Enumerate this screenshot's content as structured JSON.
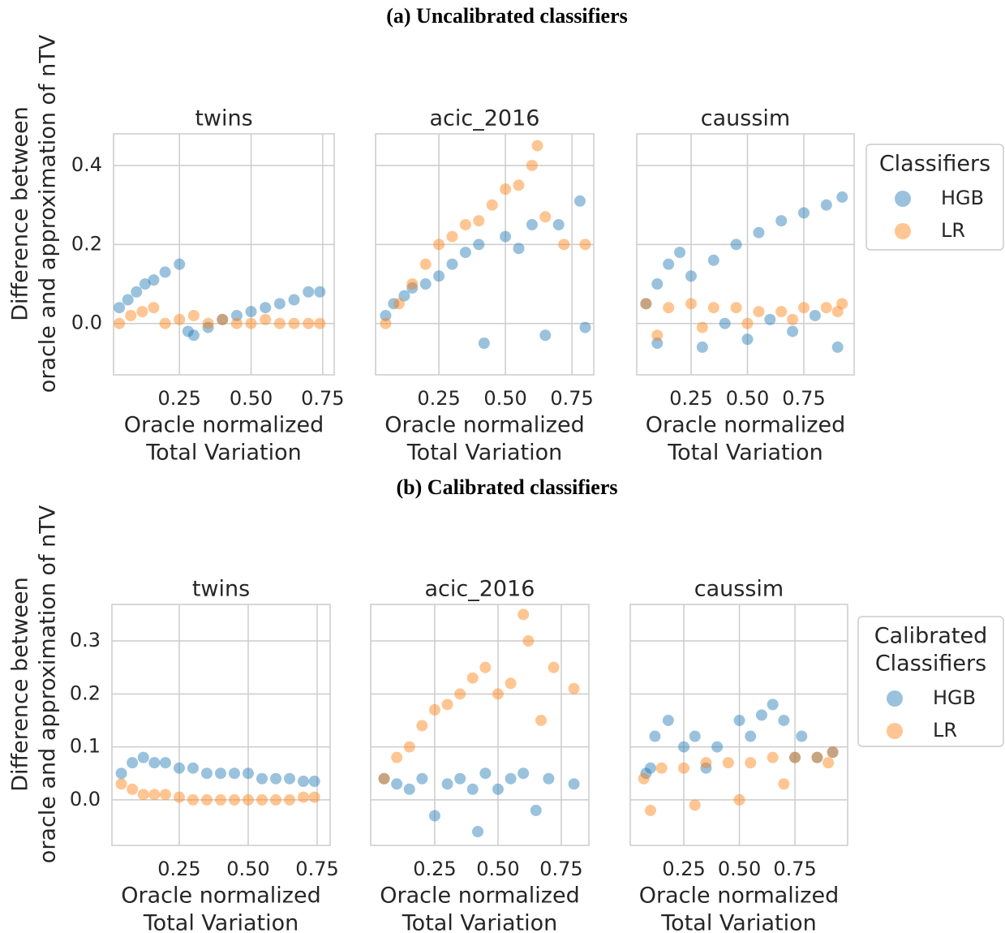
{
  "chart_data": [
    {
      "type": "scatter",
      "figure_title": "(a) Uncalibrated classifiers",
      "ylabel": [
        "Difference between",
        "oracle and approximation of nTV"
      ],
      "legend_title": [
        "Classifiers"
      ],
      "title": "twins",
      "xlabel": [
        "Oracle normalized",
        "Total Variation"
      ],
      "xlim": [
        0.02,
        0.79
      ],
      "xticks": [
        0.25,
        {
          "value": 0.5,
          "label": "0.50"
        },
        0.75
      ],
      "ylim": [
        -0.13,
        0.48
      ],
      "yticks": [
        {
          "value": 0,
          "label": "0.0"
        },
        0.2,
        0.4
      ],
      "grid": true,
      "series": [
        {
          "name": "HGB",
          "color": "#1f77b4",
          "x": [
            0.04,
            0.07,
            0.1,
            0.13,
            0.16,
            0.2,
            0.25,
            0.28,
            0.3,
            0.35,
            0.4,
            0.45,
            0.5,
            0.55,
            0.6,
            0.65,
            0.7,
            0.74
          ],
          "values": [
            0.04,
            0.06,
            0.08,
            0.1,
            0.11,
            0.13,
            0.15,
            -0.02,
            -0.03,
            -0.01,
            0.01,
            0.02,
            0.03,
            0.04,
            0.05,
            0.06,
            0.08,
            0.08
          ]
        },
        {
          "name": "LR",
          "color": "#ff7f0e",
          "x": [
            0.04,
            0.08,
            0.12,
            0.16,
            0.2,
            0.25,
            0.3,
            0.35,
            0.4,
            0.45,
            0.5,
            0.55,
            0.6,
            0.65,
            0.7,
            0.74
          ],
          "values": [
            0,
            0.02,
            0.03,
            0.04,
            0,
            0.01,
            0.02,
            0,
            0.01,
            0,
            0,
            0.01,
            0,
            0,
            0,
            0
          ]
        }
      ]
    },
    {
      "type": "scatter",
      "title": "acic_2016",
      "xlabel": [
        "Oracle normalized",
        "Total Variation"
      ],
      "xlim": [
        0.012,
        0.832
      ],
      "xticks": [
        0.25,
        {
          "value": 0.5,
          "label": "0.50"
        },
        0.75
      ],
      "ylim": [
        -0.13,
        0.48
      ],
      "yticks": [
        {
          "value": 0,
          "label": "0.0"
        },
        0.2,
        0.4
      ],
      "grid": true,
      "series": [
        {
          "color": "#1f77b4",
          "x": [
            0.05,
            0.08,
            0.12,
            0.15,
            0.2,
            0.25,
            0.3,
            0.35,
            0.4,
            0.42,
            0.5,
            0.55,
            0.6,
            0.65,
            0.7,
            0.78,
            0.8
          ],
          "values": [
            0.02,
            0.05,
            0.07,
            0.09,
            0.1,
            0.12,
            0.15,
            0.18,
            0.2,
            -0.05,
            0.22,
            0.19,
            0.25,
            -0.03,
            0.25,
            0.31,
            -0.01
          ]
        },
        {
          "color": "#ff7f0e",
          "x": [
            0.05,
            0.1,
            0.15,
            0.2,
            0.25,
            0.3,
            0.35,
            0.4,
            0.45,
            0.5,
            0.55,
            0.6,
            0.62,
            0.65,
            0.72,
            0.8
          ],
          "values": [
            0,
            0.05,
            0.1,
            0.15,
            0.2,
            0.22,
            0.25,
            0.26,
            0.3,
            0.34,
            0.35,
            0.4,
            0.45,
            0.27,
            0.2,
            0.2
          ]
        }
      ]
    },
    {
      "type": "scatter",
      "title": "caussim",
      "xlabel": [
        "Oracle normalized",
        "Total Variation"
      ],
      "xlim": [
        0.009,
        0.973
      ],
      "xticks": [
        0.25,
        {
          "value": 0.5,
          "label": "0.50"
        },
        0.75
      ],
      "ylim": [
        -0.13,
        0.48
      ],
      "yticks": [
        {
          "value": 0,
          "label": "0.0"
        },
        0.2,
        0.4
      ],
      "grid": true,
      "series": [
        {
          "color": "#1f77b4",
          "x": [
            0.05,
            0.1,
            0.15,
            0.2,
            0.25,
            0.35,
            0.45,
            0.55,
            0.65,
            0.75,
            0.85,
            0.92,
            0.1,
            0.3,
            0.5,
            0.7,
            0.9,
            0.4,
            0.6,
            0.8
          ],
          "values": [
            0.05,
            0.1,
            0.15,
            0.18,
            0.12,
            0.16,
            0.2,
            0.23,
            0.26,
            0.28,
            0.3,
            0.32,
            -0.05,
            -0.06,
            -0.04,
            -0.02,
            -0.06,
            0,
            0.01,
            0.02
          ]
        },
        {
          "color": "#ff7f0e",
          "x": [
            0.05,
            0.15,
            0.25,
            0.35,
            0.45,
            0.55,
            0.65,
            0.75,
            0.85,
            0.92,
            0.1,
            0.3,
            0.5,
            0.7,
            0.9
          ],
          "values": [
            0.05,
            0.04,
            0.05,
            0.04,
            0.04,
            0.03,
            0.03,
            0.04,
            0.04,
            0.05,
            -0.03,
            -0.01,
            0,
            0.01,
            0.03
          ]
        }
      ]
    },
    {
      "type": "scatter",
      "figure_title": "(b) Calibrated classifiers",
      "ylabel": [
        "Difference between",
        "oracle and approximation of nTV"
      ],
      "legend_title": [
        "Calibrated",
        "Classifiers"
      ],
      "title": "twins",
      "xlabel": [
        "Oracle normalized",
        "Total Variation"
      ],
      "xlim": [
        0.006,
        0.797
      ],
      "xticks": [
        0.25,
        {
          "value": 0.5,
          "label": "0.50"
        },
        0.75
      ],
      "ylim": [
        -0.086,
        0.369
      ],
      "yticks": [
        {
          "value": 0,
          "label": "0.0"
        },
        0.1,
        0.2,
        0.3
      ],
      "grid": true,
      "series": [
        {
          "name": "HGB",
          "color": "#1f77b4",
          "x": [
            0.04,
            0.08,
            0.12,
            0.16,
            0.2,
            0.25,
            0.3,
            0.35,
            0.4,
            0.45,
            0.5,
            0.55,
            0.6,
            0.65,
            0.7,
            0.74
          ],
          "values": [
            0.05,
            0.07,
            0.08,
            0.07,
            0.07,
            0.06,
            0.06,
            0.05,
            0.05,
            0.05,
            0.05,
            0.04,
            0.04,
            0.04,
            0.035,
            0.035
          ]
        },
        {
          "name": "LR",
          "color": "#ff7f0e",
          "x": [
            0.04,
            0.08,
            0.12,
            0.16,
            0.2,
            0.25,
            0.3,
            0.35,
            0.4,
            0.45,
            0.5,
            0.55,
            0.6,
            0.65,
            0.7,
            0.74
          ],
          "values": [
            0.03,
            0.02,
            0.01,
            0.01,
            0.01,
            0.005,
            0,
            0,
            0,
            0,
            0,
            0,
            0,
            0,
            0.005,
            0.005
          ]
        }
      ]
    },
    {
      "type": "scatter",
      "title": "acic_2016",
      "xlabel": [
        "Oracle normalized",
        "Total Variation"
      ],
      "xlim": [
        -0.003,
        0.859
      ],
      "xticks": [
        0.25,
        {
          "value": 0.5,
          "label": "0.50"
        },
        0.75
      ],
      "ylim": [
        -0.086,
        0.369
      ],
      "yticks": [
        {
          "value": 0,
          "label": "0.0"
        },
        0.1,
        0.2,
        0.3
      ],
      "grid": true,
      "series": [
        {
          "color": "#1f77b4",
          "x": [
            0.05,
            0.1,
            0.15,
            0.2,
            0.25,
            0.3,
            0.35,
            0.4,
            0.42,
            0.45,
            0.5,
            0.55,
            0.6,
            0.65,
            0.7,
            0.8
          ],
          "values": [
            0.04,
            0.03,
            0.02,
            0.04,
            -0.03,
            0.03,
            0.04,
            0.02,
            -0.06,
            0.05,
            0.02,
            0.04,
            0.05,
            -0.02,
            0.04,
            0.03
          ]
        },
        {
          "color": "#ff7f0e",
          "x": [
            0.05,
            0.1,
            0.15,
            0.2,
            0.25,
            0.3,
            0.35,
            0.4,
            0.45,
            0.5,
            0.55,
            0.6,
            0.62,
            0.67,
            0.72,
            0.8
          ],
          "values": [
            0.04,
            0.08,
            0.1,
            0.14,
            0.17,
            0.18,
            0.2,
            0.23,
            0.25,
            0.2,
            0.22,
            0.35,
            0.3,
            0.15,
            0.25,
            0.21
          ]
        }
      ]
    },
    {
      "type": "scatter",
      "title": "caussim",
      "xlabel": [
        "Oracle normalized",
        "Total Variation"
      ],
      "xlim": [
        0.009,
        0.987
      ],
      "xticks": [
        0.25,
        {
          "value": 0.5,
          "label": "0.50"
        },
        0.75
      ],
      "ylim": [
        -0.086,
        0.369
      ],
      "yticks": [
        {
          "value": 0,
          "label": "0.0"
        },
        0.1,
        0.2,
        0.3
      ],
      "grid": true,
      "series": [
        {
          "color": "#1f77b4",
          "x": [
            0.08,
            0.12,
            0.18,
            0.25,
            0.3,
            0.4,
            0.5,
            0.55,
            0.6,
            0.65,
            0.7,
            0.78,
            0.85,
            0.92,
            0.1,
            0.35,
            0.75
          ],
          "values": [
            0.05,
            0.12,
            0.15,
            0.1,
            0.12,
            0.1,
            0.15,
            0.12,
            0.16,
            0.18,
            0.15,
            0.12,
            0.08,
            0.09,
            0.06,
            0.06,
            0.08
          ]
        },
        {
          "color": "#ff7f0e",
          "x": [
            0.07,
            0.15,
            0.25,
            0.35,
            0.45,
            0.55,
            0.65,
            0.75,
            0.85,
            0.92,
            0.1,
            0.3,
            0.5,
            0.7,
            0.9
          ],
          "values": [
            0.04,
            0.06,
            0.06,
            0.07,
            0.07,
            0.07,
            0.08,
            0.08,
            0.08,
            0.09,
            -0.02,
            -0.01,
            0,
            0.03,
            0.07
          ]
        }
      ]
    }
  ]
}
